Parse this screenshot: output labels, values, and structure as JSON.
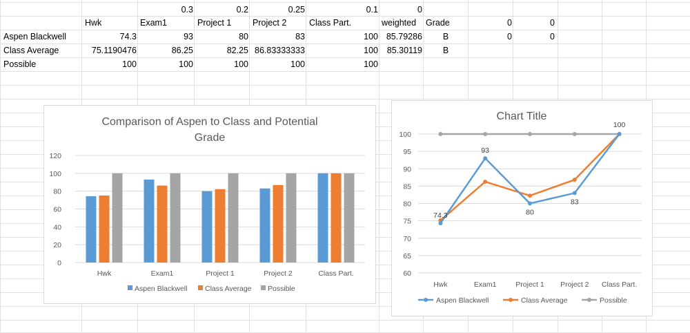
{
  "sheet": {
    "weights_row": [
      "0.3",
      "0.2",
      "0.25",
      "0.1",
      "0"
    ],
    "header_row": [
      "Hwk",
      "Exam1",
      "Project 1",
      "Project 2",
      "Class Part.",
      "weighted",
      "Grade",
      "0",
      "0"
    ],
    "rows": [
      {
        "label": "Aspen Blackwell",
        "values": [
          "74.3",
          "93",
          "80",
          "83",
          "100",
          "85.79286"
        ],
        "grade": "B",
        "extra": [
          "0",
          "0"
        ]
      },
      {
        "label": "Class Average",
        "values": [
          "75.1190476",
          "86.25",
          "82.25",
          "86.83333333",
          "100",
          "85.30119"
        ],
        "grade": "B",
        "extra": [
          "",
          ""
        ]
      },
      {
        "label": "Possible",
        "values": [
          "100",
          "100",
          "100",
          "100",
          "100",
          ""
        ],
        "grade": "",
        "extra": [
          "",
          ""
        ]
      }
    ]
  },
  "colors": {
    "aspen": "#5b9bd5",
    "class_avg": "#ed7d31",
    "possible": "#a5a5a5",
    "gridline": "#d9d9d9",
    "cell_grid": "#e1e1e1"
  },
  "chart_data": [
    {
      "type": "bar",
      "title": "Comparison of Aspen to Class and Potential Grade",
      "title_lines": [
        "Comparison of Aspen to Class and Potential",
        "Grade"
      ],
      "categories": [
        "Hwk",
        "Exam1",
        "Project 1",
        "Project 2",
        "Class Part."
      ],
      "series": [
        {
          "name": "Aspen Blackwell",
          "values": [
            74.3,
            93,
            80,
            83,
            100
          ]
        },
        {
          "name": "Class Average",
          "values": [
            75.12,
            86.25,
            82.25,
            86.83,
            100
          ]
        },
        {
          "name": "Possible",
          "values": [
            100,
            100,
            100,
            100,
            100
          ]
        }
      ],
      "ylim": [
        0,
        120
      ],
      "yticks": [
        0,
        20,
        40,
        60,
        80,
        100,
        120
      ],
      "grid": true,
      "legend": "bottom"
    },
    {
      "type": "line",
      "title": "Chart Title",
      "categories": [
        "Hwk",
        "Exam1",
        "Project 1",
        "Project 2",
        "Class Part."
      ],
      "series": [
        {
          "name": "Aspen Blackwell",
          "values": [
            74.3,
            93,
            80,
            83,
            100
          ]
        },
        {
          "name": "Class Average",
          "values": [
            75.12,
            86.25,
            82.25,
            86.83,
            100
          ]
        },
        {
          "name": "Possible",
          "values": [
            100,
            100,
            100,
            100,
            100
          ]
        }
      ],
      "data_labels": [
        "74.3",
        "93",
        "80",
        "83",
        "100"
      ],
      "ylim": [
        60,
        100
      ],
      "yticks": [
        60,
        65,
        70,
        75,
        80,
        85,
        90,
        95,
        100
      ],
      "grid": true,
      "legend": "bottom"
    }
  ]
}
